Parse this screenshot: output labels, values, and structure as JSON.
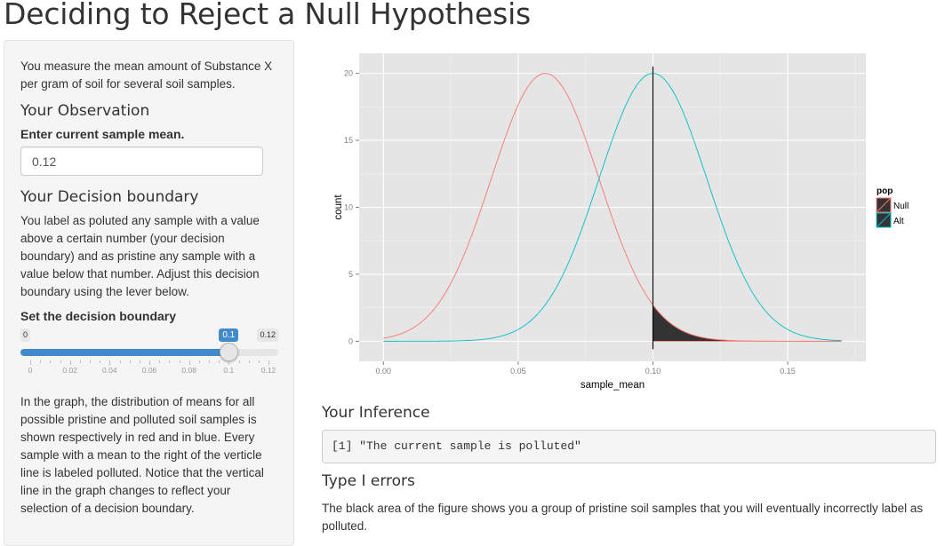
{
  "page": {
    "title": "Deciding to Reject a Null Hypothesis"
  },
  "sidebar": {
    "intro": "You measure the mean amount of Substance X per gram of soil for several soil samples.",
    "observation_heading": "Your Observation",
    "sample_mean_label": "Enter current sample mean.",
    "sample_mean_value": "0.12",
    "boundary_heading": "Your Decision boundary",
    "boundary_text": "You label as poluted any sample with a value above a certain number (your decision boundary) and as pristine any sample with a value below that number. Adjust this decision boundary using the lever below.",
    "slider_label": "Set the decision boundary",
    "slider": {
      "min": 0,
      "max": 0.12,
      "value": 0.1,
      "min_label": "0",
      "max_label": "0.12",
      "value_label": "0.1",
      "ticks": [
        "0",
        "0.02",
        "0.04",
        "0.06",
        "0.08",
        "0.1",
        "0.12"
      ]
    },
    "graph_text": "In the graph, the distribution of means for all possible pristine and polluted soil samples is shown respectively in red and in blue. Every sample with a mean to the right of the verticle line is labeled polluted. Notice that the vertical line in the graph changes to reflect your selection of a decision boundary."
  },
  "main": {
    "inference_heading": "Your Inference",
    "inference_output": "[1] \"The current sample is polluted\"",
    "type1_heading": "Type I errors",
    "type1_text": "The black area of the figure shows you a group of pristine soil samples that you will eventually incorrectly label as polluted."
  },
  "chart_data": {
    "type": "line",
    "title": "",
    "xlabel": "sample_mean",
    "ylabel": "count",
    "xlim": [
      -0.009,
      0.179
    ],
    "ylim": [
      -1.5,
      21.5
    ],
    "x_ticks": [
      0.0,
      0.05,
      0.1,
      0.15
    ],
    "x_tick_labels": [
      "0.00",
      "0.05",
      "0.10",
      "0.15"
    ],
    "y_ticks": [
      0,
      5,
      10,
      15,
      20
    ],
    "y_tick_labels": [
      "0",
      "5",
      "10",
      "15",
      "20"
    ],
    "x_range": [
      0,
      0.17
    ],
    "grid": true,
    "legend": {
      "title": "pop",
      "position": "right"
    },
    "series": [
      {
        "name": "Null",
        "color": "#F8766D",
        "mean": 0.06,
        "sd": 0.02,
        "peak": 20
      },
      {
        "name": "Alt",
        "color": "#00BFC4",
        "mean": 0.1,
        "sd": 0.02,
        "peak": 20
      }
    ],
    "decision_boundary": 0.1,
    "shaded_region": {
      "series": "Null",
      "from": 0.1,
      "to": 0.17,
      "fill": "#333333"
    },
    "colors": {
      "panel": "#E5E5E5",
      "grid": "#FFFFFF",
      "boundary_line": "#000000"
    }
  }
}
